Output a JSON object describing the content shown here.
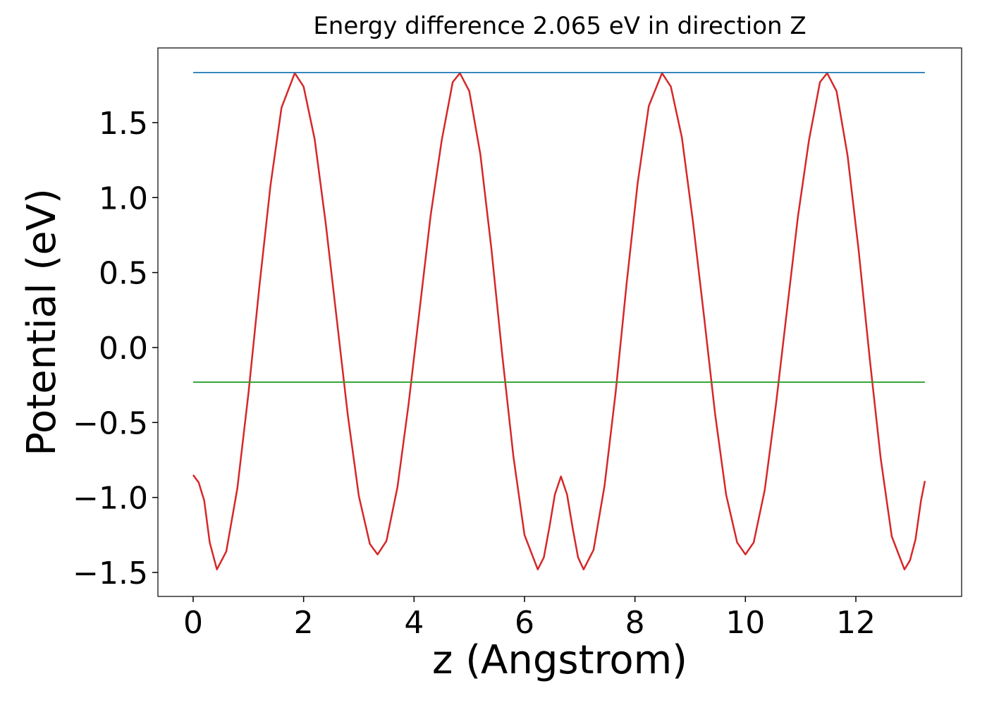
{
  "chart_data": {
    "type": "line",
    "title": "Energy difference 2.065 eV in direction Z",
    "xlabel": "z (Angstrom)",
    "ylabel": "Potential (eV)",
    "xlim": [
      -0.638,
      13.915
    ],
    "ylim": [
      -1.66,
      1.998
    ],
    "xticks": [
      0,
      2,
      4,
      6,
      8,
      10,
      12
    ],
    "yticks": [
      {
        "value": -1.5,
        "label": "−1.5"
      },
      {
        "value": -1.0,
        "label": "−1.0"
      },
      {
        "value": -0.5,
        "label": "−0.5"
      },
      {
        "value": 0.0,
        "label": "0.0"
      },
      0.5,
      {
        "value": 1.0,
        "label": "1.0"
      },
      1.5
    ],
    "grid": false,
    "series": [
      {
        "color": "#d62728",
        "x": [
          0,
          0.1,
          0.2,
          0.3,
          0.43,
          0.6,
          0.8,
          1.0,
          1.2,
          1.4,
          1.6,
          1.84,
          2.0,
          2.2,
          2.4,
          2.6,
          2.8,
          3.0,
          3.2,
          3.34,
          3.5,
          3.7,
          3.9,
          4.1,
          4.3,
          4.5,
          4.7,
          4.83,
          5.0,
          5.2,
          5.4,
          5.6,
          5.8,
          6.0,
          6.24,
          6.35,
          6.45,
          6.55,
          6.66,
          6.77,
          6.87,
          6.97,
          7.07,
          7.25,
          7.45,
          7.65,
          7.85,
          8.05,
          8.25,
          8.49,
          8.65,
          8.85,
          9.05,
          9.25,
          9.45,
          9.65,
          9.85,
          10.0,
          10.15,
          10.35,
          10.55,
          10.75,
          10.95,
          11.15,
          11.35,
          11.48,
          11.65,
          11.85,
          12.05,
          12.25,
          12.45,
          12.65,
          12.88,
          12.98,
          13.08,
          13.18,
          13.25
        ],
        "values": [
          -0.85,
          -0.9,
          -1.02,
          -1.3,
          -1.48,
          -1.36,
          -0.94,
          -0.31,
          0.41,
          1.08,
          1.6,
          1.83,
          1.74,
          1.39,
          0.83,
          0.19,
          -0.45,
          -0.99,
          -1.31,
          -1.38,
          -1.29,
          -0.93,
          -0.38,
          0.25,
          0.88,
          1.38,
          1.77,
          1.83,
          1.71,
          1.29,
          0.66,
          -0.06,
          -0.73,
          -1.25,
          -1.48,
          -1.4,
          -1.2,
          -0.98,
          -0.86,
          -0.98,
          -1.2,
          -1.4,
          -1.48,
          -1.35,
          -0.92,
          -0.3,
          0.43,
          1.1,
          1.61,
          1.83,
          1.74,
          1.4,
          0.84,
          0.21,
          -0.44,
          -0.98,
          -1.3,
          -1.38,
          -1.3,
          -0.95,
          -0.39,
          0.24,
          0.87,
          1.38,
          1.77,
          1.83,
          1.71,
          1.28,
          0.65,
          -0.07,
          -0.74,
          -1.26,
          -1.48,
          -1.42,
          -1.28,
          -1.02,
          -0.89
        ]
      },
      {
        "color": "#1f77b4",
        "x": [
          0,
          13.25
        ],
        "values": [
          1.834,
          1.834
        ]
      },
      {
        "color": "#2ca02c",
        "x": [
          0,
          13.25
        ],
        "values": [
          -0.231,
          -0.231
        ]
      }
    ]
  }
}
